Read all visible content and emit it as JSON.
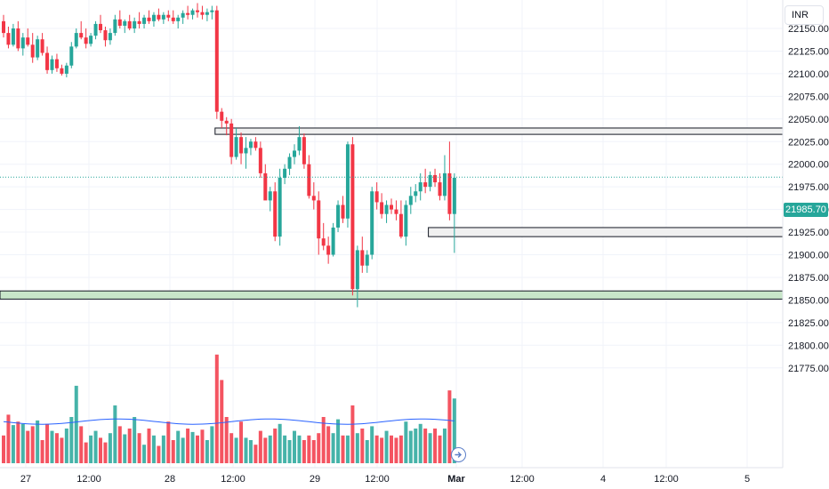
{
  "header": {
    "currency": "INR"
  },
  "last_price": "21985.70",
  "colors": {
    "up": "#26a69a",
    "down": "#f23645",
    "volume_up": "#26a69a",
    "volume_down": "#f23645",
    "volume_ma": "#2962ff",
    "grid": "#f0f3fa",
    "zone_gray": "#f0f0f0",
    "zone_green": "#c8e6c9",
    "zone_border": "#131722"
  },
  "chart_data": {
    "type": "candlestick",
    "price_axis": {
      "range": [
        21762,
        22158
      ],
      "ticks": [
        "22150.00",
        "22125.00",
        "22100.00",
        "22075.00",
        "22050.00",
        "22025.00",
        "22000.00",
        "21975.00",
        "21950.00",
        "21925.00",
        "21900.00",
        "21875.00",
        "21850.00",
        "21825.00",
        "21800.00",
        "21775.00"
      ]
    },
    "time_axis": {
      "ticks": [
        "27",
        "12:00",
        "28",
        "12:00",
        "29",
        "12:00",
        "Mar",
        "12:00",
        "4",
        "12:00",
        "5"
      ]
    },
    "zones": [
      {
        "top": 22040,
        "bottom": 22033,
        "style": "gray",
        "from_candle": 44
      },
      {
        "top": 21930,
        "bottom": 21920,
        "style": "gray",
        "from_candle": 88
      },
      {
        "top": 21860,
        "bottom": 21851,
        "style": "green",
        "from_candle": 0
      }
    ],
    "volume_ma_level": 0.36,
    "candles": [
      [
        22158,
        22165,
        22140,
        22145,
        0.24
      ],
      [
        22145,
        22152,
        22128,
        22132,
        0.42
      ],
      [
        22132,
        22155,
        22130,
        22150,
        0.33
      ],
      [
        22150,
        22158,
        22125,
        22128,
        0.36
      ],
      [
        22128,
        22145,
        22120,
        22140,
        0.34
      ],
      [
        22140,
        22150,
        22130,
        22132,
        0.28
      ],
      [
        22132,
        22145,
        22112,
        22118,
        0.32
      ],
      [
        22118,
        22142,
        22115,
        22138,
        0.37
      ],
      [
        22138,
        22145,
        22120,
        22123,
        0.2
      ],
      [
        22123,
        22130,
        22100,
        22104,
        0.34
      ],
      [
        22104,
        22120,
        22100,
        22116,
        0.28
      ],
      [
        22116,
        22122,
        22102,
        22106,
        0.26
      ],
      [
        22106,
        22110,
        22098,
        22100,
        0.22
      ],
      [
        22100,
        22112,
        22096,
        22109,
        0.3
      ],
      [
        22109,
        22135,
        22106,
        22130,
        0.4
      ],
      [
        22130,
        22150,
        22128,
        22145,
        0.67
      ],
      [
        22145,
        22158,
        22138,
        22140,
        0.32
      ],
      [
        22140,
        22150,
        22128,
        22133,
        0.18
      ],
      [
        22133,
        22145,
        22130,
        22142,
        0.24
      ],
      [
        22142,
        22158,
        22138,
        22155,
        0.28
      ],
      [
        22155,
        22165,
        22145,
        22148,
        0.22
      ],
      [
        22148,
        22152,
        22130,
        22137,
        0.18
      ],
      [
        22137,
        22150,
        22132,
        22145,
        0.26
      ],
      [
        22145,
        22165,
        22142,
        22160,
        0.5
      ],
      [
        22160,
        22170,
        22150,
        22153,
        0.32
      ],
      [
        22153,
        22160,
        22145,
        22158,
        0.25
      ],
      [
        22158,
        22165,
        22148,
        22150,
        0.3
      ],
      [
        22150,
        22162,
        22145,
        22158,
        0.4
      ],
      [
        22158,
        22168,
        22150,
        22155,
        0.26
      ],
      [
        22155,
        22165,
        22150,
        22162,
        0.16
      ],
      [
        22162,
        22170,
        22155,
        22158,
        0.3
      ],
      [
        22158,
        22168,
        22152,
        22165,
        0.24
      ],
      [
        22165,
        22172,
        22158,
        22160,
        0.15
      ],
      [
        22160,
        22168,
        22155,
        22165,
        0.24
      ],
      [
        22165,
        22170,
        22158,
        22162,
        0.36
      ],
      [
        22162,
        22170,
        22155,
        22158,
        0.2
      ],
      [
        22158,
        22165,
        22150,
        22162,
        0.28
      ],
      [
        22162,
        22170,
        22155,
        22167,
        0.22
      ],
      [
        22167,
        22175,
        22160,
        22165,
        0.3
      ],
      [
        22165,
        22172,
        22160,
        22170,
        0.27
      ],
      [
        22170,
        22178,
        22162,
        22168,
        0.24
      ],
      [
        22168,
        22175,
        22160,
        22165,
        0.29
      ],
      [
        22165,
        22172,
        22158,
        22168,
        0.2
      ],
      [
        22168,
        22175,
        22160,
        22170,
        0.32
      ],
      [
        22170,
        22175,
        22050,
        22058,
        0.94
      ],
      [
        22058,
        22062,
        22040,
        22048,
        0.72
      ],
      [
        22048,
        22052,
        22032,
        22045,
        0.4
      ],
      [
        22045,
        22050,
        22000,
        22008,
        0.26
      ],
      [
        22008,
        22040,
        22005,
        22030,
        0.22
      ],
      [
        22030,
        22035,
        22000,
        22012,
        0.36
      ],
      [
        22012,
        22030,
        21995,
        22018,
        0.22
      ],
      [
        22018,
        22028,
        22010,
        22025,
        0.2
      ],
      [
        22025,
        22030,
        22015,
        22018,
        0.16
      ],
      [
        22018,
        22025,
        21985,
        21990,
        0.28
      ],
      [
        21990,
        22000,
        21962,
        21960,
        0.22
      ],
      [
        21960,
        21975,
        21948,
        21970,
        0.24
      ],
      [
        21970,
        21980,
        21915,
        21920,
        0.3
      ],
      [
        21920,
        21995,
        21910,
        21985,
        0.34
      ],
      [
        21985,
        22000,
        21978,
        21995,
        0.24
      ],
      [
        21995,
        22012,
        21988,
        22008,
        0.2
      ],
      [
        22008,
        22022,
        22000,
        22015,
        0.28
      ],
      [
        22015,
        22042,
        22010,
        22030,
        0.24
      ],
      [
        22030,
        22034,
        21995,
        22000,
        0.2
      ],
      [
        22000,
        22010,
        21962,
        21965,
        0.24
      ],
      [
        21965,
        21980,
        21950,
        21960,
        0.2
      ],
      [
        21960,
        21970,
        21900,
        21918,
        0.26
      ],
      [
        21918,
        21935,
        21905,
        21910,
        0.4
      ],
      [
        21910,
        21920,
        21890,
        21900,
        0.32
      ],
      [
        21900,
        21935,
        21898,
        21930,
        0.26
      ],
      [
        21930,
        21960,
        21925,
        21955,
        0.38
      ],
      [
        21955,
        21965,
        21935,
        21940,
        0.24
      ],
      [
        21940,
        22025,
        21930,
        22022,
        0.24
      ],
      [
        22022,
        22030,
        21855,
        21862,
        0.5
      ],
      [
        21862,
        21910,
        21842,
        21905,
        0.26
      ],
      [
        21905,
        21920,
        21880,
        21888,
        0.3
      ],
      [
        21888,
        21905,
        21880,
        21900,
        0.2
      ],
      [
        21900,
        21975,
        21895,
        21970,
        0.32
      ],
      [
        21970,
        21980,
        21950,
        21958,
        0.24
      ],
      [
        21958,
        21968,
        21940,
        21945,
        0.22
      ],
      [
        21945,
        21960,
        21935,
        21955,
        0.28
      ],
      [
        21955,
        21962,
        21945,
        21950,
        0.24
      ],
      [
        21950,
        21960,
        21938,
        21945,
        0.22
      ],
      [
        21945,
        21960,
        21918,
        21920,
        0.24
      ],
      [
        21920,
        21960,
        21910,
        21955,
        0.36
      ],
      [
        21955,
        21975,
        21945,
        21965,
        0.28
      ],
      [
        21965,
        21978,
        21958,
        21970,
        0.3
      ],
      [
        21970,
        21990,
        21960,
        21980,
        0.34
      ],
      [
        21980,
        21995,
        21968,
        21975,
        0.3
      ],
      [
        21975,
        21992,
        21970,
        21988,
        0.26
      ],
      [
        21988,
        21995,
        21975,
        21980,
        0.3
      ],
      [
        21980,
        21990,
        21960,
        21965,
        0.24
      ],
      [
        21965,
        22010,
        21960,
        21990,
        0.3
      ],
      [
        21990,
        22025,
        21938,
        21945,
        0.63
      ],
      [
        21945,
        21990,
        21902,
        21985,
        0.56
      ]
    ]
  }
}
